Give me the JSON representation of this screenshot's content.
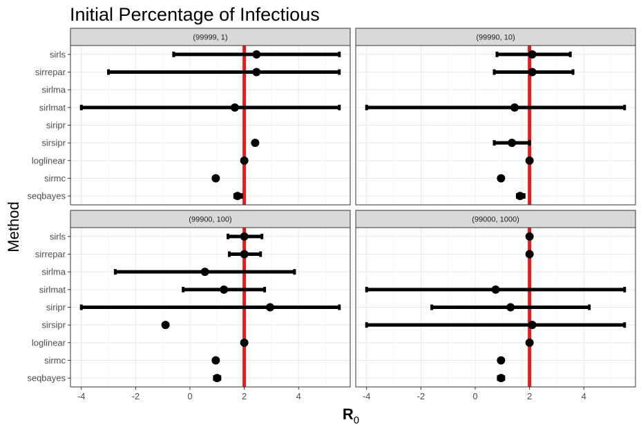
{
  "chart_data": {
    "type": "scatter",
    "title": "Initial Percentage of Infectious",
    "xlabel": "R",
    "xlabel_subscript": "0",
    "ylabel": "Method",
    "xlim": [
      -4.4,
      5.9
    ],
    "x_ticks": [
      "-4",
      "-2",
      "0",
      "2",
      "4"
    ],
    "x_tick_values": [
      -4,
      -2,
      0,
      2,
      4
    ],
    "categories": [
      "sirls",
      "sirrepar",
      "sirlma",
      "sirlmat",
      "siripr",
      "sirsipr",
      "loglinear",
      "sirmc",
      "seqbayes"
    ],
    "reference_line": {
      "x": 2,
      "color": "#e41a1c"
    },
    "point_color": "#000000",
    "strip_color": "#d9d9d9",
    "grid": true,
    "facets": [
      {
        "label": "(99999, 1)",
        "points": [
          {
            "method": "sirls",
            "estimate": 2.45,
            "lower": -0.6,
            "upper": 5.5
          },
          {
            "method": "sirrepar",
            "estimate": 2.45,
            "lower": -3.0,
            "upper": 5.5
          },
          {
            "method": "sirlmat",
            "estimate": 1.65,
            "lower": -4.0,
            "upper": 5.5
          },
          {
            "method": "sirsipr",
            "estimate": 2.4
          },
          {
            "method": "loglinear",
            "estimate": 2.0
          },
          {
            "method": "sirmc",
            "estimate": 0.95
          },
          {
            "method": "seqbayes",
            "estimate": 1.75,
            "lower": 1.65,
            "upper": 1.9
          }
        ]
      },
      {
        "label": "(99990, 10)",
        "points": [
          {
            "method": "sirls",
            "estimate": 2.1,
            "lower": 0.8,
            "upper": 3.5
          },
          {
            "method": "sirrepar",
            "estimate": 2.1,
            "lower": 0.7,
            "upper": 3.6
          },
          {
            "method": "sirlmat",
            "estimate": 1.45,
            "lower": -4.0,
            "upper": 5.5
          },
          {
            "method": "sirsipr",
            "estimate": 1.35,
            "lower": 0.7,
            "upper": 2.0
          },
          {
            "method": "loglinear",
            "estimate": 2.0
          },
          {
            "method": "sirmc",
            "estimate": 0.95
          },
          {
            "method": "seqbayes",
            "estimate": 1.65,
            "lower": 1.55,
            "upper": 1.8
          }
        ]
      },
      {
        "label": "(99900, 100)",
        "points": [
          {
            "method": "sirls",
            "estimate": 2.0,
            "lower": 1.4,
            "upper": 2.65
          },
          {
            "method": "sirrepar",
            "estimate": 2.0,
            "lower": 1.45,
            "upper": 2.6
          },
          {
            "method": "sirlma",
            "estimate": 0.55,
            "lower": -2.75,
            "upper": 3.85
          },
          {
            "method": "sirlmat",
            "estimate": 1.25,
            "lower": -0.25,
            "upper": 2.75
          },
          {
            "method": "siripr",
            "estimate": 2.95,
            "lower": -4.0,
            "upper": 5.5
          },
          {
            "method": "sirsipr",
            "estimate": -0.9
          },
          {
            "method": "loglinear",
            "estimate": 2.0
          },
          {
            "method": "sirmc",
            "estimate": 0.95
          },
          {
            "method": "seqbayes",
            "estimate": 1.0,
            "lower": 0.9,
            "upper": 1.1
          }
        ]
      },
      {
        "label": "(99000, 1000)",
        "points": [
          {
            "method": "sirls",
            "estimate": 2.0
          },
          {
            "method": "sirrepar",
            "estimate": 2.0
          },
          {
            "method": "sirlmat",
            "estimate": 0.75,
            "lower": -4.0,
            "upper": 5.5
          },
          {
            "method": "siripr",
            "estimate": 1.3,
            "lower": -1.6,
            "upper": 4.2
          },
          {
            "method": "sirsipr",
            "estimate": 2.1,
            "lower": -4.0,
            "upper": 5.5
          },
          {
            "method": "loglinear",
            "estimate": 2.0
          },
          {
            "method": "sirmc",
            "estimate": 0.95
          },
          {
            "method": "seqbayes",
            "estimate": 0.95,
            "lower": 0.85,
            "upper": 1.05
          }
        ]
      }
    ]
  }
}
